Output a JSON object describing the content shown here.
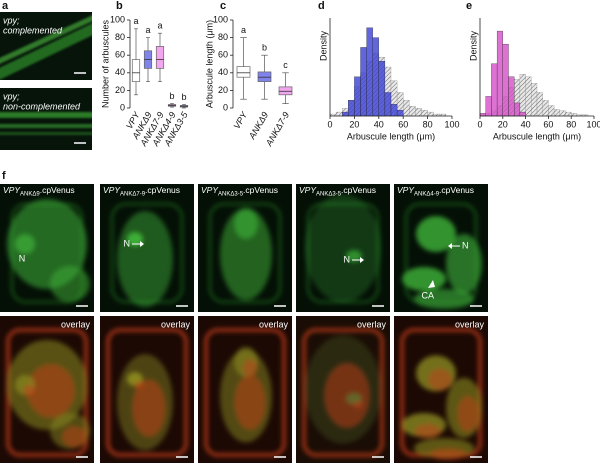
{
  "panels": {
    "a": {
      "label": "a",
      "images": [
        {
          "lines": [
            "vpy;",
            "complemented"
          ]
        },
        {
          "lines": [
            "vpy;",
            "non-complemented"
          ]
        }
      ]
    },
    "b": {
      "label": "b",
      "chart": {
        "type": "box",
        "y_label": "Number of arbuscules",
        "ylim": [
          0,
          100
        ],
        "yticks": [
          0,
          20,
          40,
          60,
          80,
          100
        ],
        "categories": [
          "VPY",
          "ANKΔ9",
          "ANKΔ7-9",
          "ANKΔ4-9",
          "ANKΔ3-5"
        ],
        "group_letters": [
          "a",
          "a",
          "a",
          "b",
          "b"
        ],
        "colors": [
          "#ffffff",
          "#7f83ea",
          "#f3a6f0",
          "#d98ad8",
          "#9a8fe0"
        ],
        "boxes": [
          {
            "min": 15,
            "q1": 30,
            "median": 40,
            "q3": 55,
            "max": 90
          },
          {
            "min": 30,
            "q1": 45,
            "median": 55,
            "q3": 65,
            "max": 80
          },
          {
            "min": 30,
            "q1": 45,
            "median": 55,
            "q3": 70,
            "max": 85
          },
          {
            "min": 1,
            "q1": 2,
            "median": 3,
            "q3": 4,
            "max": 5
          },
          {
            "min": 0,
            "q1": 1,
            "median": 2,
            "q3": 3,
            "max": 4
          }
        ]
      }
    },
    "c": {
      "label": "c",
      "chart": {
        "type": "box",
        "y_label": "Arbuscule length (μm)",
        "ylim": [
          0,
          100
        ],
        "yticks": [
          0,
          20,
          40,
          60,
          80,
          100
        ],
        "categories": [
          "VPY",
          "ANKΔ9",
          "ANKΔ7-9"
        ],
        "group_letters": [
          "a",
          "b",
          "c"
        ],
        "colors": [
          "#ffffff",
          "#7f83ea",
          "#f3a6f0"
        ],
        "boxes": [
          {
            "min": 10,
            "q1": 35,
            "median": 40,
            "q3": 47,
            "max": 80
          },
          {
            "min": 10,
            "q1": 30,
            "median": 35,
            "q3": 41,
            "max": 60
          },
          {
            "min": 5,
            "q1": 15,
            "median": 19,
            "q3": 24,
            "max": 40
          }
        ]
      }
    },
    "d": {
      "label": "d",
      "chart": {
        "type": "histogram",
        "x_label": "Arbuscule length (μm)",
        "y_label": "Density",
        "xlim": [
          0,
          100
        ],
        "xticks": [
          0,
          20,
          40,
          60,
          80,
          100
        ],
        "ylim": [
          0,
          0.05
        ],
        "bins": [
          0,
          5,
          10,
          15,
          20,
          25,
          30,
          35,
          40,
          45,
          50,
          55,
          60,
          65,
          70,
          75,
          80,
          85,
          90,
          95,
          100
        ],
        "series": [
          {
            "color": "#888888",
            "hatch": true,
            "values": [
              0.001,
              0.002,
              0.004,
              0.008,
              0.015,
              0.022,
              0.028,
              0.032,
              0.03,
              0.025,
              0.018,
              0.012,
              0.008,
              0.005,
              0.004,
              0.003,
              0.002,
              0.001,
              0.001,
              0
            ]
          },
          {
            "color": "#3b40d4",
            "hatch": false,
            "values": [
              0,
              0,
              0.002,
              0.008,
              0.02,
              0.035,
              0.045,
              0.04,
              0.028,
              0.012,
              0.006,
              0.003,
              0,
              0,
              0,
              0,
              0,
              0,
              0,
              0
            ]
          }
        ]
      }
    },
    "e": {
      "label": "e",
      "chart": {
        "type": "histogram",
        "x_label": "Arbuscule length (μm)",
        "y_label": "Density",
        "xlim": [
          0,
          100
        ],
        "xticks": [
          0,
          20,
          40,
          60,
          80,
          100
        ],
        "ylim": [
          0,
          0.075
        ],
        "bins": [
          0,
          5,
          10,
          15,
          20,
          25,
          30,
          35,
          40,
          45,
          50,
          55,
          60,
          65,
          70,
          75,
          80,
          85,
          90,
          95,
          100
        ],
        "series": [
          {
            "color": "#888888",
            "hatch": true,
            "values": [
              0.001,
              0.002,
              0.004,
              0.008,
              0.015,
              0.022,
              0.028,
              0.032,
              0.03,
              0.025,
              0.018,
              0.012,
              0.008,
              0.005,
              0.004,
              0.003,
              0.002,
              0.001,
              0.001,
              0
            ]
          },
          {
            "color": "#d44fc8",
            "hatch": false,
            "values": [
              0.002,
              0.015,
              0.04,
              0.065,
              0.055,
              0.03,
              0.01,
              0.003,
              0,
              0,
              0,
              0,
              0,
              0,
              0,
              0,
              0,
              0,
              0,
              0
            ]
          }
        ]
      }
    },
    "f": {
      "label": "f",
      "columns": [
        {
          "title": {
            "main": "VPY",
            "sub": "ANKΔ9",
            "suffix": ".cpVenus"
          },
          "annotations": [
            "N"
          ],
          "overlay": "overlay"
        },
        {
          "title": {
            "main": "VPY",
            "sub": "ANKΔ7-9",
            "suffix": ".cpVenus"
          },
          "annotations": [
            "N"
          ],
          "overlay": "overlay"
        },
        {
          "title": {
            "main": "VPY",
            "sub": "ANKΔ3-5",
            "suffix": ".cpVenus"
          },
          "annotations": [],
          "overlay": "overlay"
        },
        {
          "title": {
            "main": "VPY",
            "sub": "ANKΔ3-5",
            "suffix": ".cpVenus"
          },
          "annotations": [
            "N"
          ],
          "overlay": "overlay"
        },
        {
          "title": {
            "main": "VPY",
            "sub": "ANKΔ4-9",
            "suffix": ".cpVenus"
          },
          "annotations": [
            "N",
            "CA"
          ],
          "overlay": "overlay"
        }
      ]
    }
  }
}
